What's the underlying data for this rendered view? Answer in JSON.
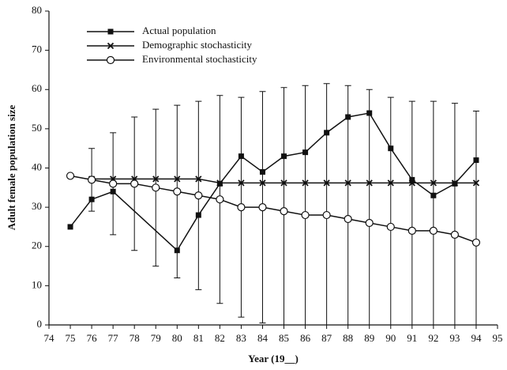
{
  "chart_data": {
    "type": "line",
    "x_label": "Year (19__)",
    "y_label": "Adult female population size",
    "xlim": [
      74,
      95
    ],
    "xticks": [
      74,
      75,
      76,
      77,
      78,
      79,
      80,
      81,
      82,
      83,
      84,
      85,
      86,
      87,
      88,
      89,
      90,
      91,
      92,
      93,
      94,
      95
    ],
    "ylim": [
      0,
      80
    ],
    "yticks": [
      0,
      10,
      20,
      30,
      40,
      50,
      60,
      70,
      80
    ],
    "legend": "upper left",
    "series": [
      {
        "name": "Actual population",
        "color": "#111111",
        "marker": "square",
        "x": [
          75,
          76,
          77,
          80,
          81,
          82,
          83,
          84,
          85,
          86,
          87,
          88,
          89,
          90,
          91,
          92,
          93,
          94
        ],
        "values": [
          25,
          32,
          34,
          19,
          28,
          36,
          43,
          39,
          43,
          44,
          49,
          53,
          54,
          45,
          37,
          33,
          36,
          42
        ]
      },
      {
        "name": "Demographic stochasticity",
        "color": "#111111",
        "marker": "x",
        "x": [
          76,
          77,
          78,
          79,
          80,
          81,
          82,
          83,
          84,
          85,
          86,
          87,
          88,
          89,
          90,
          91,
          92,
          93,
          94
        ],
        "values": [
          37.2,
          37.2,
          37.2,
          37.2,
          37.2,
          37.2,
          36.2,
          36.2,
          36.2,
          36.2,
          36.2,
          36.2,
          36.2,
          36.2,
          36.2,
          36.2,
          36.2,
          36.2,
          36.2
        ]
      },
      {
        "name": "Environmental stochasticity",
        "color": "#111111",
        "marker": "circle",
        "x": [
          75,
          76,
          77,
          78,
          79,
          80,
          81,
          82,
          83,
          84,
          85,
          86,
          87,
          88,
          89,
          90,
          91,
          92,
          93,
          94
        ],
        "values": [
          38,
          37,
          36,
          36,
          35,
          34,
          33,
          32,
          30,
          30,
          29,
          28,
          28,
          27,
          26,
          25,
          24,
          24,
          23,
          21
        ],
        "errors": [
          null,
          8,
          13,
          17,
          20,
          22,
          24,
          26.5,
          28,
          29.5,
          31.5,
          33,
          33.5,
          34,
          34,
          33,
          33,
          33,
          33.5,
          33.5
        ]
      }
    ]
  }
}
